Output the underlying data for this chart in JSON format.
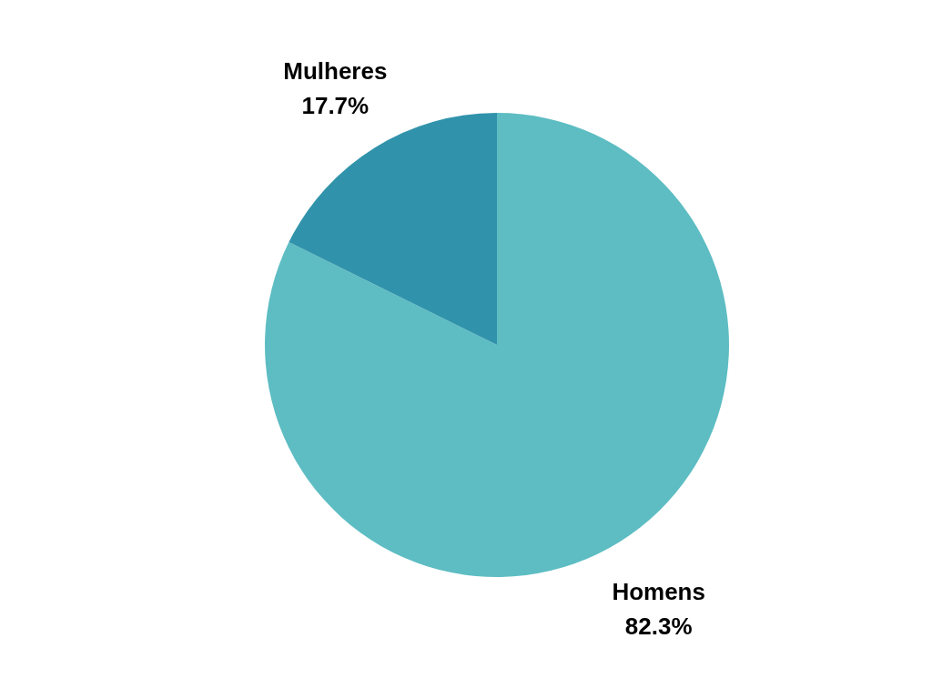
{
  "chart_data": {
    "type": "pie",
    "categories": [
      "Homens",
      "Mulheres"
    ],
    "values": [
      82.3,
      17.7
    ],
    "colors": [
      "#5dbdc3",
      "#3193ab"
    ],
    "value_labels": [
      "82.3%",
      "17.7%"
    ]
  }
}
